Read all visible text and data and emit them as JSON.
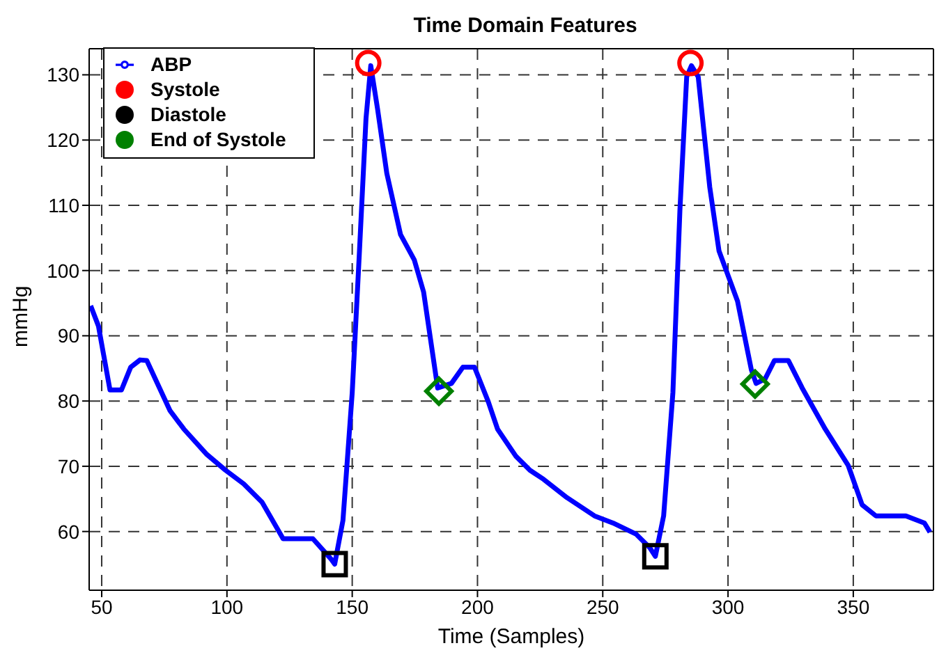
{
  "chart_data": {
    "type": "line",
    "title": "Time Domain Features",
    "xlabel": "Time (Samples)",
    "ylabel": "mmHg",
    "xlim": [
      45,
      382
    ],
    "ylim": [
      51,
      134
    ],
    "xticks": [
      50,
      100,
      150,
      200,
      250,
      300,
      350
    ],
    "yticks": [
      60,
      70,
      80,
      90,
      100,
      110,
      120,
      130
    ],
    "grid": true,
    "legend": "top left",
    "series": [
      {
        "name": "ABP",
        "color": "#0000ff",
        "marker": "none",
        "line_style": "solid",
        "x": [
          45.6,
          48.7,
          53.3,
          57.9,
          61.6,
          65.3,
          68,
          77.3,
          82.8,
          92,
          99.4,
          106.7,
          114,
          122.4,
          134.3,
          141.7,
          143,
          146.3,
          150,
          152.8,
          155.5,
          157.4,
          160.1,
          163.8,
          169.3,
          174.8,
          178.5,
          184.1,
          189.6,
          194.2,
          198.8,
          204.3,
          208,
          215.4,
          220.9,
          226.4,
          235.7,
          246.7,
          254.1,
          263.3,
          268.8,
          271,
          274.3,
          278,
          280.8,
          283.5,
          285.4,
          288.1,
          292.7,
          296.4,
          303.8,
          309.3,
          311.2,
          314.8,
          318.5,
          324.1,
          329.6,
          338.8,
          348,
          353.5,
          359,
          371,
          378.4,
          380.6
        ],
        "values": [
          94.6,
          91.5,
          81.7,
          81.7,
          85.2,
          86.3,
          86.2,
          78.5,
          75.7,
          71.8,
          69.4,
          67.3,
          64.5,
          58.9,
          58.9,
          55.7,
          55,
          61.7,
          81.3,
          102.3,
          123.3,
          131.4,
          124.8,
          114.9,
          105.5,
          101.6,
          96.7,
          82,
          82.7,
          85.2,
          85.2,
          79.9,
          75.7,
          71.5,
          69.4,
          68,
          65.2,
          62.4,
          61.3,
          59.6,
          57.5,
          56.2,
          62.4,
          81.3,
          109.3,
          129.7,
          131.4,
          129.7,
          112.8,
          103,
          95.3,
          84.8,
          82.7,
          83.4,
          86.2,
          86.2,
          82,
          75.7,
          70.1,
          64.1,
          62.4,
          62.4,
          61.3,
          59.9
        ]
      },
      {
        "name": "Systole",
        "type": "scatter",
        "color": "#ff0000",
        "marker": "circle",
        "x": [
          156.4,
          285
        ],
        "values": [
          131.8,
          131.8
        ]
      },
      {
        "name": "Diastole",
        "type": "scatter",
        "color": "#000000",
        "marker": "square",
        "x": [
          143,
          271
        ],
        "values": [
          55,
          56.2
        ]
      },
      {
        "name": "End of Systole",
        "type": "scatter",
        "color": "#008000",
        "marker": "diamond",
        "x": [
          184.6,
          310.8
        ],
        "values": [
          81.5,
          82.6
        ]
      }
    ]
  }
}
